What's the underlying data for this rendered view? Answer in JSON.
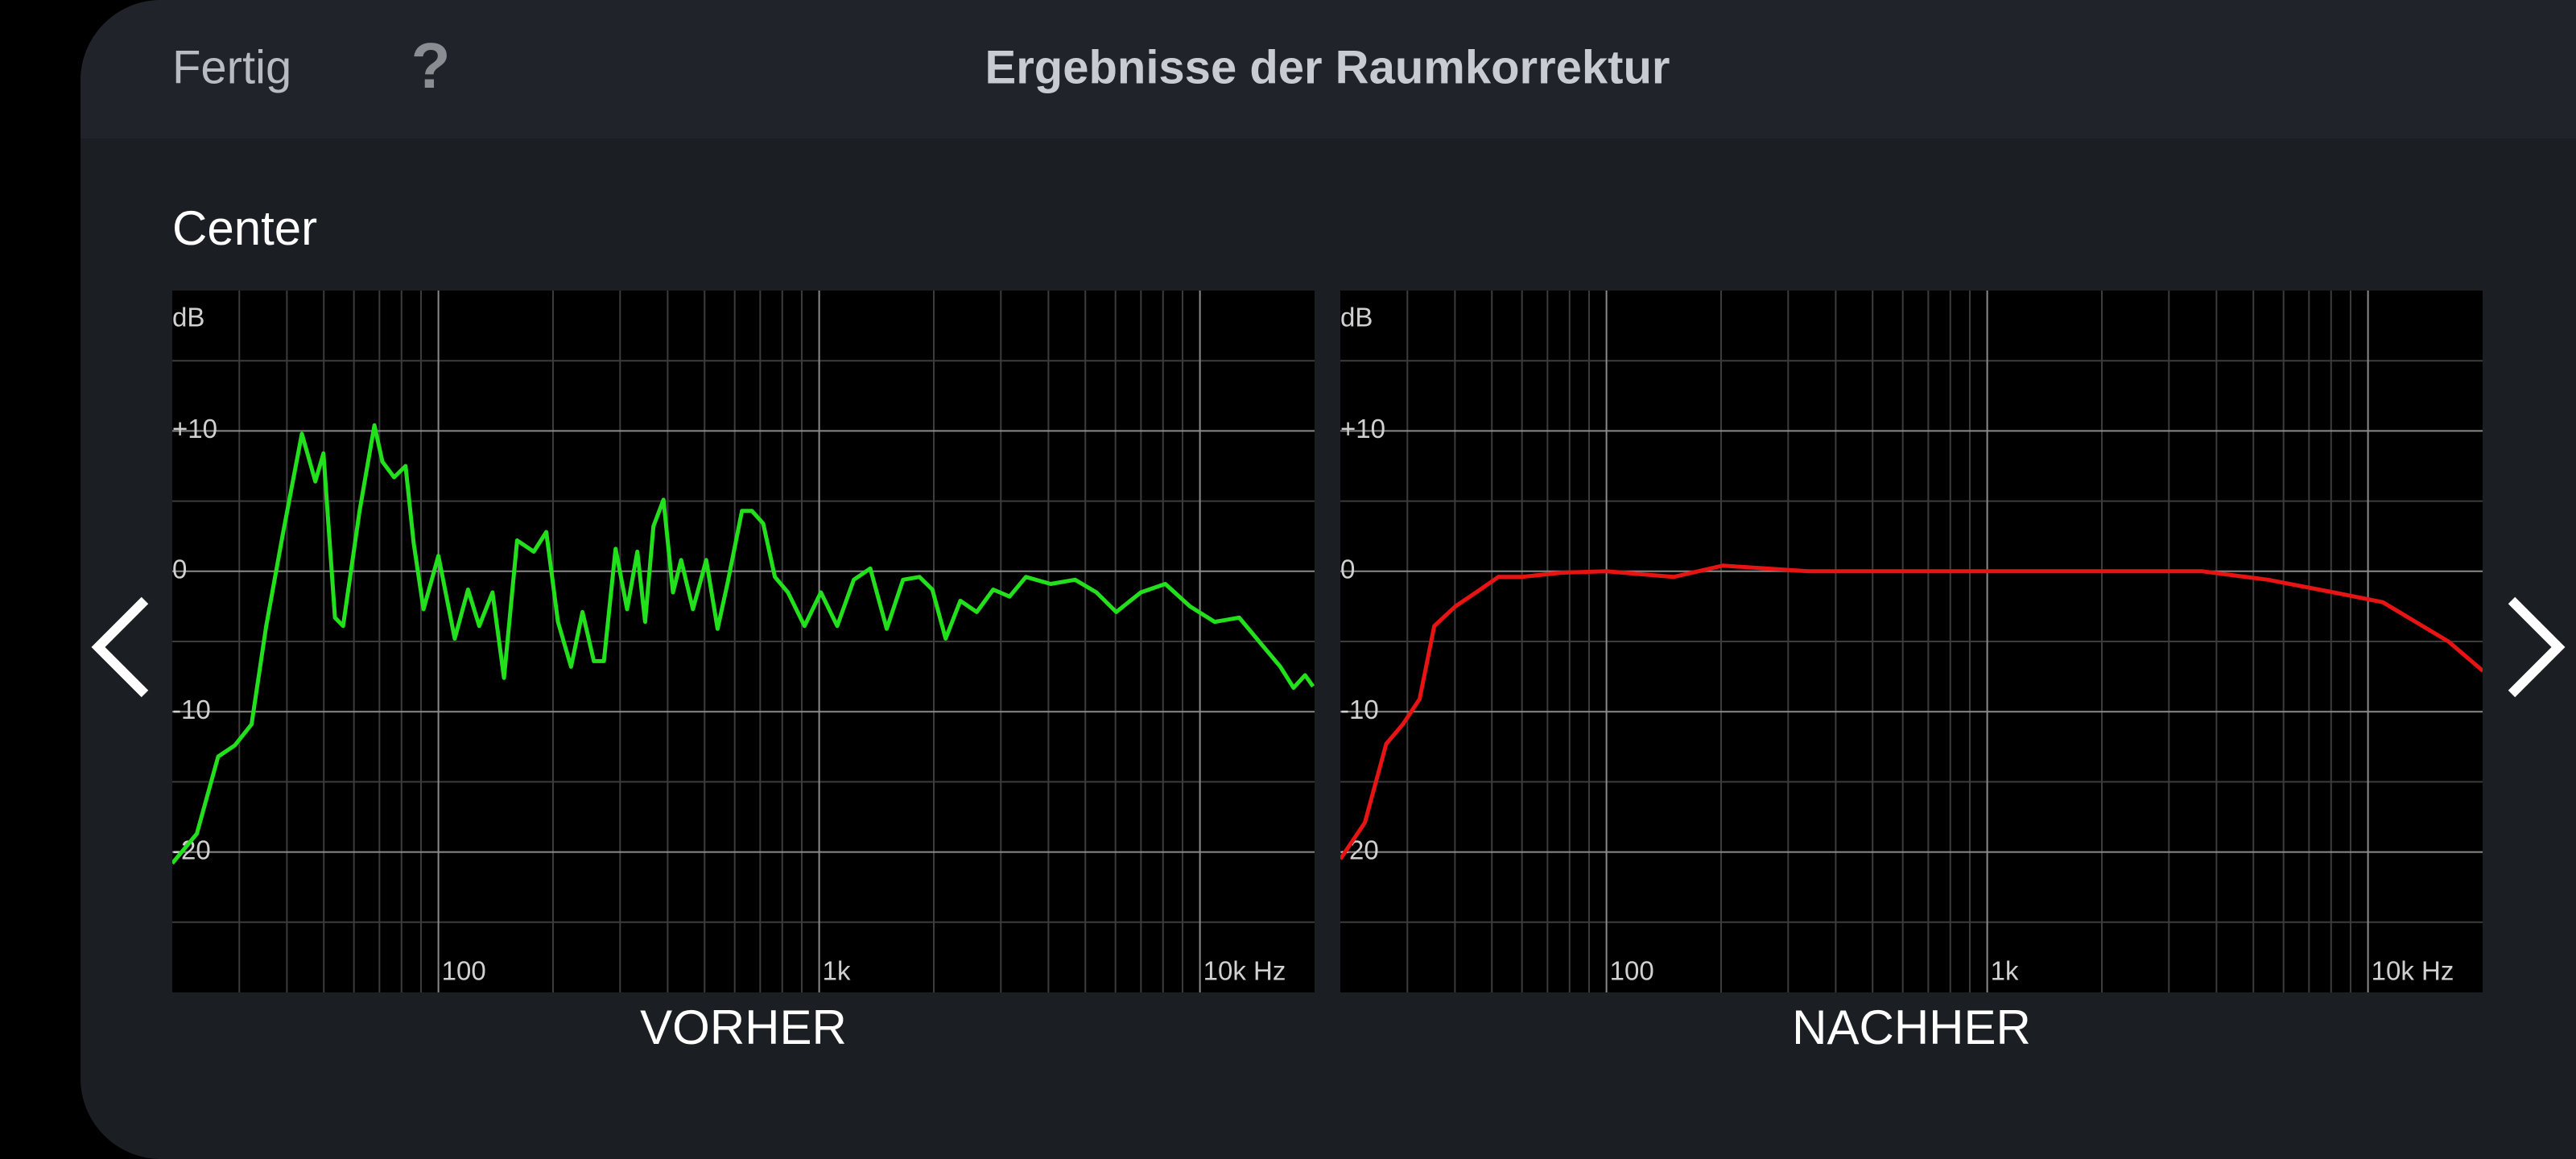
{
  "header": {
    "done": "Fertig",
    "help": "?",
    "title": "Ergebnisse der Raumkorrektur"
  },
  "channel": "Center",
  "chart_data": [
    {
      "type": "line",
      "title": "VORHER",
      "log_x": true,
      "grid": true,
      "color": "#22e01c",
      "y_label": "dB",
      "xlim": [
        20,
        20000
      ],
      "xticks": [
        {
          "value": 100,
          "label": "100"
        },
        {
          "value": 1000,
          "label": "1k"
        },
        {
          "value": 10000,
          "label": "10k Hz"
        }
      ],
      "xgrid_minor": [
        30,
        40,
        50,
        60,
        70,
        80,
        90,
        200,
        300,
        400,
        500,
        600,
        700,
        800,
        900,
        2000,
        3000,
        4000,
        5000,
        6000,
        7000,
        8000,
        9000
      ],
      "ylim": [
        -30,
        20
      ],
      "yticks": [
        {
          "value": 10,
          "label": "+10"
        },
        0,
        -10,
        -20
      ],
      "ygrid_minor": [
        -25,
        -15,
        -5,
        5,
        15
      ],
      "x": [
        20,
        23.2,
        26.4,
        29.2,
        32.3,
        35.3,
        39,
        43.8,
        47.5,
        49.9,
        53.5,
        56.2,
        62.1,
        67.9,
        71.3,
        76.5,
        82,
        86.1,
        91.4,
        100,
        110.4,
        119.6,
        128,
        138.7,
        148.7,
        161,
        178,
        192,
        206,
        223,
        239,
        256,
        272,
        292,
        313,
        333,
        349,
        367,
        390,
        413,
        434,
        466,
        505,
        541,
        574,
        627,
        666,
        713,
        765,
        828,
        915,
        1010,
        1115,
        1233,
        1362,
        1504,
        1661,
        1834,
        1983,
        2148,
        2349,
        2594,
        2864,
        3162,
        3491,
        4055,
        4699,
        5346,
        6026,
        6995,
        8110,
        9415,
        10930,
        12680,
        14720,
        16260,
        17610,
        18880,
        19820
      ],
      "values": [
        -20.8,
        -18.7,
        -13.2,
        -12.4,
        -10.9,
        -3.9,
        2.6,
        9.8,
        6.4,
        8.4,
        -3.3,
        -3.9,
        4.3,
        10.4,
        7.8,
        6.7,
        7.5,
        2,
        -2.7,
        1.1,
        -4.8,
        -1.3,
        -3.9,
        -1.5,
        -7.6,
        2.2,
        1.4,
        2.8,
        -3.6,
        -6.8,
        -2.9,
        -6.4,
        -6.4,
        1.6,
        -2.7,
        1.4,
        -3.6,
        3.2,
        5.1,
        -1.5,
        0.8,
        -2.7,
        0.8,
        -4.1,
        -0.9,
        4.3,
        4.3,
        3.4,
        -0.4,
        -1.5,
        -3.9,
        -1.5,
        -3.9,
        -0.6,
        0.2,
        -4.1,
        -0.6,
        -0.4,
        -1.3,
        -4.8,
        -2.1,
        -2.9,
        -1.3,
        -1.8,
        -0.4,
        -0.9,
        -0.6,
        -1.5,
        -2.9,
        -1.5,
        -0.9,
        -2.5,
        -3.6,
        -3.3,
        -5.4,
        -6.8,
        -8.3,
        -7.4,
        -8.2
      ]
    },
    {
      "type": "line",
      "title": "NACHHER",
      "log_x": true,
      "grid": true,
      "color": "#e81414",
      "y_label": "dB",
      "xlim": [
        20,
        20000
      ],
      "xticks": [
        {
          "value": 100,
          "label": "100"
        },
        {
          "value": 1000,
          "label": "1k"
        },
        {
          "value": 10000,
          "label": "10k Hz"
        }
      ],
      "xgrid_minor": [
        30,
        40,
        50,
        60,
        70,
        80,
        90,
        200,
        300,
        400,
        500,
        600,
        700,
        800,
        900,
        2000,
        3000,
        4000,
        5000,
        6000,
        7000,
        8000,
        9000
      ],
      "ylim": [
        -30,
        20
      ],
      "yticks": [
        {
          "value": 10,
          "label": "+10"
        },
        0,
        -10,
        -20
      ],
      "ygrid_minor": [
        -25,
        -15,
        -5,
        5,
        15
      ],
      "x": [
        20,
        23.2,
        26.4,
        29.2,
        32.3,
        35.3,
        40.1,
        46.6,
        52,
        59.7,
        76.5,
        100,
        150,
        202,
        339,
        1000,
        3673,
        5460,
        8120,
        10930,
        13330,
        16260,
        20040
      ],
      "values": [
        -20.5,
        -17.9,
        -12.3,
        -10.9,
        -9.1,
        -3.9,
        -2.5,
        -1.3,
        -0.4,
        -0.4,
        -0.1,
        0,
        -0.4,
        0.4,
        0,
        0,
        0,
        -0.6,
        -1.5,
        -2.2,
        -3.6,
        -5,
        -7.1
      ]
    }
  ]
}
